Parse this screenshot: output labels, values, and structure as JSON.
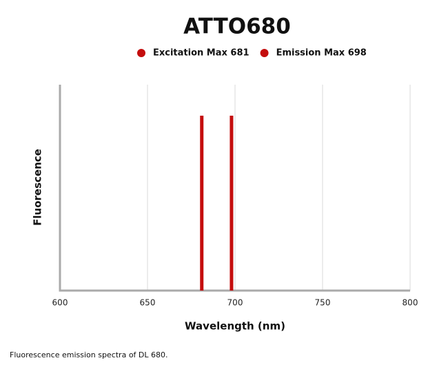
{
  "chart_data": {
    "type": "spectral-lines",
    "title": "ATTO680",
    "x_label": "Wavelength (nm)",
    "y_label": "Fluorescence",
    "series": [
      {
        "name": "Excitation Max 681",
        "color": "#c40d0d",
        "x": 681
      },
      {
        "name": "Emission Max 698",
        "color": "#c40d0d",
        "x": 698
      }
    ],
    "xlim": [
      600,
      800
    ],
    "xticks": [
      600,
      650,
      700,
      750,
      800
    ],
    "grid": true
  },
  "caption": "Fluorescence emission spectra of DL 680."
}
